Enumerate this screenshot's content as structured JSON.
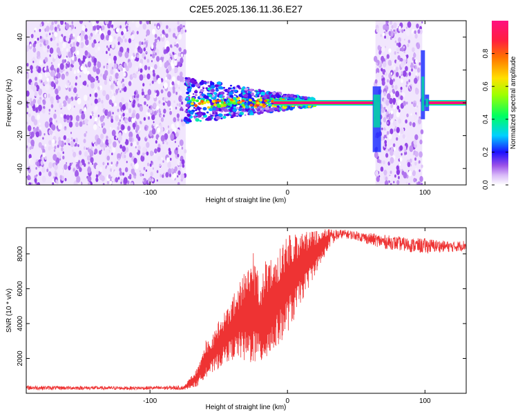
{
  "title": "C2E5.2025.136.11.36.E27",
  "chart_data": [
    {
      "type": "heatmap",
      "xlabel": "Height of straight line (km)",
      "ylabel": "Frequency (Hz)",
      "xlim": [
        -190,
        130
      ],
      "ylim": [
        -50,
        50
      ],
      "xticks": [
        -100,
        0,
        100
      ],
      "yticks": [
        -40,
        -20,
        0,
        20,
        40
      ],
      "xtick_labels": [
        "-100",
        "0",
        "100"
      ],
      "ytick_labels": [
        "-40",
        "-20",
        "0",
        "20",
        "40"
      ],
      "grid": false,
      "colorbar": {
        "label": "Normalized spectral amplitude",
        "range": [
          0,
          1
        ],
        "ticks": [
          0.0,
          0.2,
          0.4,
          0.6,
          0.8
        ],
        "tick_labels": [
          "0.0",
          "0.2",
          "0.4",
          "0.6",
          "0.8"
        ],
        "colormap": [
          "#ffffff",
          "#d8b8f8",
          "#9a50e8",
          "#6a00e0",
          "#1c10ff",
          "#00d0ff",
          "#00ff60",
          "#a0ff00",
          "#ffe000",
          "#ff7000",
          "#ff1f3f",
          "#ff1080"
        ]
      },
      "regions": [
        {
          "name": "noise",
          "x_range": [
            -190,
            -74
          ],
          "freq_range": [
            -50,
            50
          ],
          "amplitude_range": [
            0.0,
            0.15
          ]
        },
        {
          "name": "signal-onset",
          "x_range": [
            -74,
            20
          ],
          "freq_range": [
            -15,
            12
          ],
          "amplitude_range": [
            0.1,
            1.0
          ]
        },
        {
          "name": "carrier-line",
          "x_range": [
            -10,
            130
          ],
          "freq": 0,
          "amplitude": 1.0
        },
        {
          "name": "noise-burst",
          "x_range": [
            64,
            98
          ],
          "freq_range": [
            -50,
            50
          ],
          "amplitude_range": [
            0.0,
            0.15
          ]
        }
      ]
    },
    {
      "type": "line",
      "xlabel": "Height of straight line (km)",
      "ylabel": "SNR (10 * v/v)",
      "xlim": [
        -190,
        130
      ],
      "ylim": [
        0,
        9500
      ],
      "xticks": [
        -100,
        0,
        100
      ],
      "yticks": [
        2000,
        4000,
        6000,
        8000
      ],
      "xtick_labels": [
        "-100",
        "0",
        "100"
      ],
      "ytick_labels": [
        "2000",
        "4000",
        "6000",
        "8000"
      ],
      "grid": false,
      "series": [
        {
          "color": "#ee3333",
          "x": [
            -190,
            -170,
            -150,
            -130,
            -110,
            -90,
            -75,
            -65,
            -60,
            -55,
            -50,
            -45,
            -40,
            -35,
            -30,
            -25,
            -20,
            -15,
            -10,
            -5,
            0,
            5,
            10,
            15,
            20,
            25,
            30,
            35,
            40,
            50,
            60,
            70,
            80,
            90,
            100,
            110,
            120,
            130
          ],
          "y_low": [
            200,
            200,
            200,
            200,
            200,
            200,
            200,
            400,
            900,
            1100,
            1400,
            1800,
            1900,
            2000,
            1600,
            1700,
            1600,
            1900,
            2300,
            2900,
            3500,
            4200,
            5200,
            6000,
            6800,
            7500,
            8300,
            8700,
            8900,
            8800,
            8500,
            8300,
            8200,
            8100,
            8000,
            8100,
            8100,
            8200
          ],
          "y_high": [
            450,
            420,
            420,
            400,
            400,
            420,
            450,
            1500,
            3000,
            3200,
            4200,
            4700,
            5600,
            6400,
            7200,
            8100,
            6500,
            7900,
            7700,
            8500,
            9300,
            9200,
            9200,
            9300,
            9300,
            9400,
            9450,
            9400,
            9400,
            9300,
            9200,
            9100,
            9000,
            8900,
            8900,
            8800,
            8700,
            8800
          ]
        }
      ]
    }
  ]
}
